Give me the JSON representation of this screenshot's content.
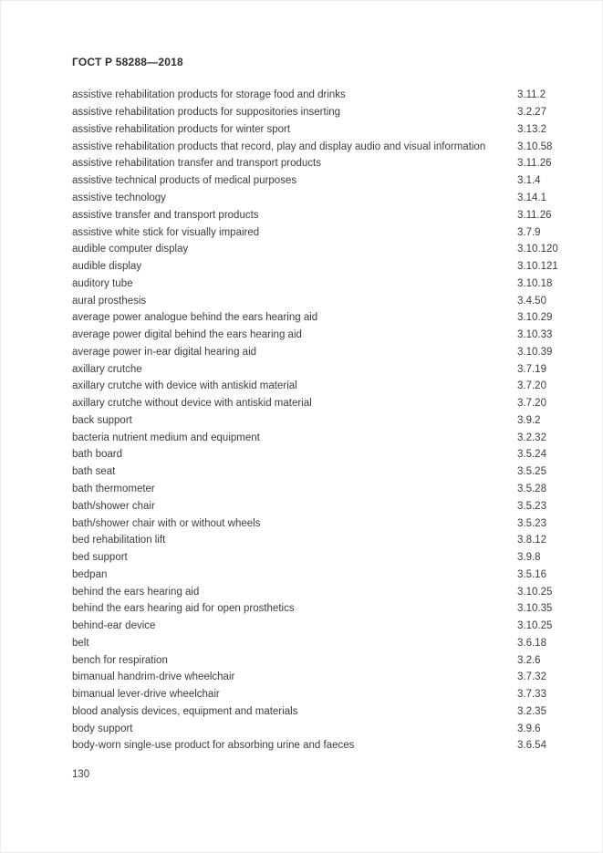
{
  "page": {
    "header": "ГОСТ Р 58288—2018",
    "page_number": "130"
  },
  "index_entries": [
    {
      "term": "assistive rehabilitation products for storage food and drinks",
      "ref": "3.11.2"
    },
    {
      "term": "assistive rehabilitation products for suppositories inserting",
      "ref": "3.2.27"
    },
    {
      "term": "assistive rehabilitation products for winter sport",
      "ref": "3.13.2"
    },
    {
      "term": "assistive rehabilitation products that record, play and display audio and visual information",
      "ref": "3.10.58"
    },
    {
      "term": "assistive rehabilitation transfer and transport products",
      "ref": "3.11.26"
    },
    {
      "term": "assistive technical products of medical purposes",
      "ref": "3.1.4"
    },
    {
      "term": "assistive technology",
      "ref": "3.14.1"
    },
    {
      "term": "assistive transfer and transport products",
      "ref": "3.11.26"
    },
    {
      "term": "assistive white stick for visually impaired",
      "ref": "3.7.9"
    },
    {
      "term": "audible computer display",
      "ref": "3.10.120"
    },
    {
      "term": "audible display",
      "ref": "3.10.121"
    },
    {
      "term": "auditory tube",
      "ref": "3.10.18"
    },
    {
      "term": "aural prosthesis",
      "ref": "3.4.50"
    },
    {
      "term": "average power analogue behind the ears hearing aid",
      "ref": "3.10.29"
    },
    {
      "term": "average power digital behind the ears hearing aid",
      "ref": "3.10.33"
    },
    {
      "term": "average power in-ear digital hearing aid",
      "ref": "3.10.39"
    },
    {
      "term": "axillary crutche",
      "ref": "3.7.19"
    },
    {
      "term": "axillary crutche with device with antiskid material",
      "ref": "3.7.20"
    },
    {
      "term": "axillary crutche without device with antiskid material",
      "ref": "3.7.20"
    },
    {
      "term": "back support",
      "ref": "3.9.2"
    },
    {
      "term": "bacteria nutrient medium and equipment",
      "ref": "3.2.32"
    },
    {
      "term": "bath board",
      "ref": "3.5.24"
    },
    {
      "term": "bath seat",
      "ref": "3.5.25"
    },
    {
      "term": "bath thermometer",
      "ref": "3.5.28"
    },
    {
      "term": "bath/shower chair",
      "ref": "3.5.23"
    },
    {
      "term": "bath/shower chair with or without wheels",
      "ref": "3.5.23"
    },
    {
      "term": "bed rehabilitation lift",
      "ref": "3.8.12"
    },
    {
      "term": "bed support",
      "ref": "3.9.8"
    },
    {
      "term": "bedpan",
      "ref": "3.5.16"
    },
    {
      "term": "behind the ears hearing aid",
      "ref": "3.10.25"
    },
    {
      "term": "behind the ears hearing aid for open prosthetics",
      "ref": "3.10.35"
    },
    {
      "term": "behind-ear device",
      "ref": "3.10.25"
    },
    {
      "term": "belt",
      "ref": "3.6.18"
    },
    {
      "term": "bench for respiration",
      "ref": "3.2.6"
    },
    {
      "term": "bimanual handrim-drive wheelchair",
      "ref": "3.7.32"
    },
    {
      "term": "bimanual lever-drive wheelchair",
      "ref": "3.7.33"
    },
    {
      "term": "blood analysis devices, equipment and materials",
      "ref": "3.2.35"
    },
    {
      "term": "body support",
      "ref": "3.9.6"
    },
    {
      "term": "body-worn single-use product for absorbing urine and faeces",
      "ref": "3.6.54"
    }
  ]
}
